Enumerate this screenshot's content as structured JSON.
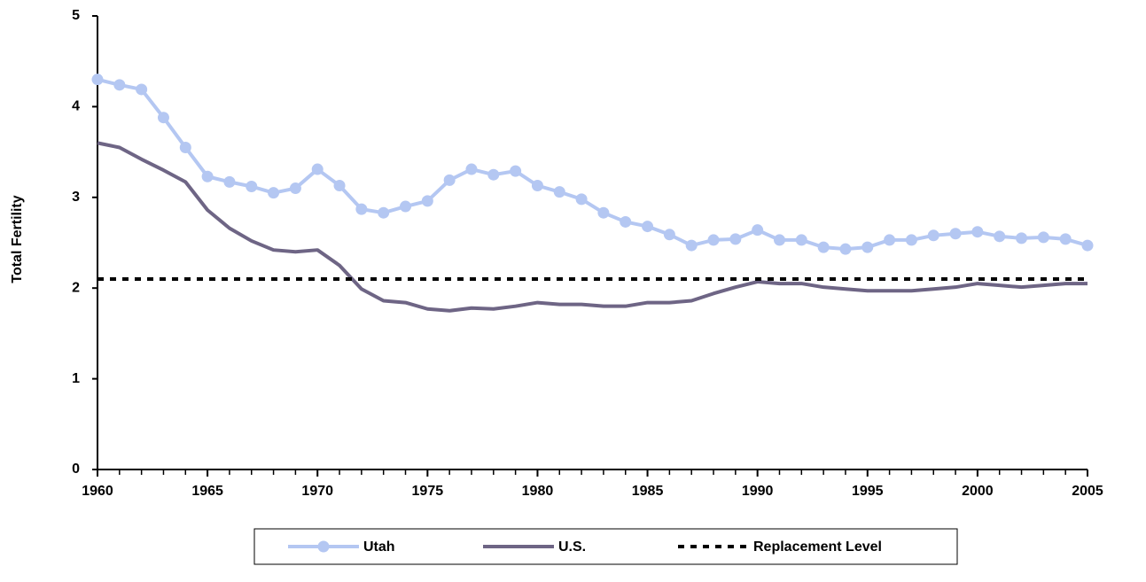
{
  "chart_data": {
    "type": "line",
    "y_label": "Total Fertility",
    "x": [
      1960,
      1961,
      1962,
      1963,
      1964,
      1965,
      1966,
      1967,
      1968,
      1969,
      1970,
      1971,
      1972,
      1973,
      1974,
      1975,
      1976,
      1977,
      1978,
      1979,
      1980,
      1981,
      1982,
      1983,
      1984,
      1985,
      1986,
      1987,
      1988,
      1989,
      1990,
      1991,
      1992,
      1993,
      1994,
      1995,
      1996,
      1997,
      1998,
      1999,
      2000,
      2001,
      2002,
      2003,
      2004,
      2005
    ],
    "series": [
      {
        "name": "Utah",
        "color": "#b4c7f2",
        "markers": true,
        "values": [
          4.3,
          4.24,
          4.19,
          3.88,
          3.55,
          3.23,
          3.17,
          3.12,
          3.05,
          3.1,
          3.31,
          3.13,
          2.87,
          2.83,
          2.9,
          2.96,
          3.19,
          3.31,
          3.25,
          3.29,
          3.13,
          3.06,
          2.98,
          2.83,
          2.73,
          2.68,
          2.59,
          2.47,
          2.53,
          2.54,
          2.64,
          2.53,
          2.53,
          2.45,
          2.43,
          2.45,
          2.53,
          2.53,
          2.58,
          2.6,
          2.62,
          2.57,
          2.55,
          2.56,
          2.54,
          2.47
        ]
      },
      {
        "name": "U.S.",
        "color": "#6e6585",
        "values": [
          3.6,
          3.55,
          3.42,
          3.3,
          3.17,
          2.86,
          2.66,
          2.52,
          2.42,
          2.4,
          2.42,
          2.25,
          1.99,
          1.86,
          1.84,
          1.77,
          1.75,
          1.78,
          1.77,
          1.8,
          1.84,
          1.82,
          1.82,
          1.8,
          1.8,
          1.84,
          1.84,
          1.86,
          1.94,
          2.01,
          2.07,
          2.05,
          2.05,
          2.01,
          1.99,
          1.97,
          1.97,
          1.97,
          1.99,
          2.01,
          2.05,
          2.03,
          2.01,
          2.03,
          2.05,
          2.05
        ]
      },
      {
        "name": "Replacement Level",
        "color": "#000000",
        "dashed": true,
        "x": [
          1960,
          2005
        ],
        "values": [
          2.1,
          2.1
        ]
      }
    ],
    "xlim": [
      1960,
      2005
    ],
    "xticks": [
      1960,
      1965,
      1970,
      1975,
      1980,
      1985,
      1990,
      1995,
      2000,
      2005
    ],
    "ylim": [
      0,
      5
    ],
    "yticks": [
      0,
      1,
      2,
      3,
      4,
      5
    ],
    "grid": false,
    "legend": "bottom"
  }
}
